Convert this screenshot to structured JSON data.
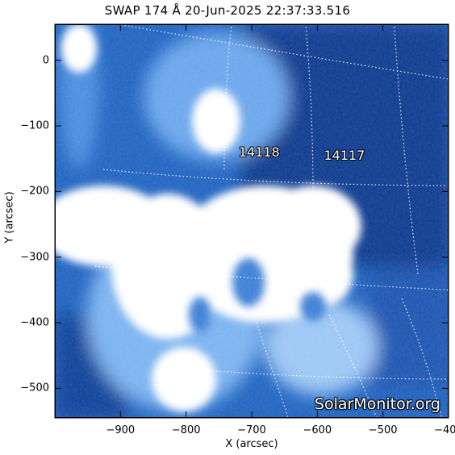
{
  "title": "SWAP 174 Å 20-Jun-2025 22:37:33.516",
  "axes": {
    "xlabel": "X (arcsec)",
    "ylabel": "Y (arcsec)",
    "x_ticks": [
      "−900",
      "−800",
      "−700",
      "−600",
      "−500",
      "−400"
    ],
    "y_ticks": [
      "0",
      "−100",
      "−200",
      "−300",
      "−400",
      "−500"
    ],
    "xlim": [
      -1000,
      -400
    ],
    "ylim": [
      -545,
      55
    ]
  },
  "regions": [
    {
      "label": "14118",
      "x": -720,
      "y": -140
    },
    {
      "label": "14117",
      "x": -590,
      "y": -145
    }
  ],
  "credit": "SolarMonitor.org",
  "colors": {
    "background": "#ffffff",
    "frame": "#000000",
    "dark_blue": "#0a3a8f",
    "mid_blue": "#1f63c0",
    "light": "#ffffff"
  }
}
